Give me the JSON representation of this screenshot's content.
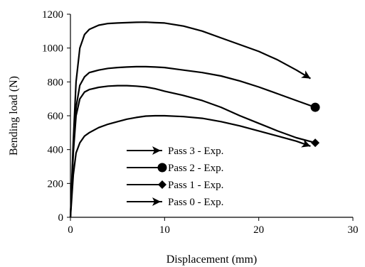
{
  "chart_data": {
    "type": "line",
    "title": "",
    "xlabel": "Displacement (mm)",
    "ylabel": "Bending load (N)",
    "xlim": [
      0,
      30
    ],
    "ylim": [
      0,
      1200
    ],
    "xticks": [
      0,
      10,
      20,
      30
    ],
    "yticks": [
      0,
      200,
      400,
      600,
      800,
      1000,
      1200
    ],
    "grid": false,
    "legend_position": "lower-center",
    "series": [
      {
        "name": "Pass 3 - Exp.",
        "marker": "arrow",
        "x": [
          0,
          0.3,
          0.6,
          1.0,
          1.5,
          2.0,
          3.0,
          4.0,
          5.0,
          6.0,
          7.0,
          8.0,
          9.0,
          10.0,
          12.0,
          14.0,
          16.0,
          18.0,
          20.0,
          22.0,
          24.0,
          25.5
        ],
        "y": [
          0,
          450,
          800,
          1000,
          1080,
          1110,
          1135,
          1145,
          1148,
          1150,
          1152,
          1153,
          1150,
          1148,
          1130,
          1100,
          1060,
          1020,
          980,
          930,
          870,
          820
        ]
      },
      {
        "name": "Pass 2 - Exp.",
        "marker": "circle",
        "x": [
          0,
          0.3,
          0.6,
          1.0,
          1.5,
          2.0,
          3.0,
          4.0,
          5.0,
          6.0,
          7.0,
          8.0,
          9.0,
          10.0,
          12.0,
          14.0,
          16.0,
          18.0,
          20.0,
          22.0,
          24.0,
          26.0
        ],
        "y": [
          0,
          400,
          650,
          780,
          830,
          855,
          870,
          880,
          885,
          888,
          890,
          890,
          888,
          885,
          870,
          855,
          835,
          805,
          770,
          730,
          690,
          650
        ]
      },
      {
        "name": "Pass 1 - Exp.",
        "marker": "diamond",
        "x": [
          0,
          0.3,
          0.6,
          1.0,
          1.5,
          2.0,
          3.0,
          4.0,
          5.0,
          6.0,
          7.0,
          8.0,
          9.0,
          10.0,
          12.0,
          14.0,
          16.0,
          18.0,
          20.0,
          22.0,
          24.0,
          26.0
        ],
        "y": [
          0,
          380,
          600,
          700,
          740,
          755,
          768,
          775,
          778,
          778,
          775,
          770,
          760,
          745,
          720,
          690,
          650,
          600,
          555,
          510,
          470,
          440
        ]
      },
      {
        "name": "Pass 0 - Exp.",
        "marker": "arrow",
        "x": [
          0,
          0.3,
          0.6,
          1.0,
          1.5,
          2.0,
          3.0,
          4.0,
          5.0,
          6.0,
          7.0,
          8.0,
          9.0,
          10.0,
          12.0,
          14.0,
          16.0,
          18.0,
          20.0,
          22.0,
          24.0,
          25.5
        ],
        "y": [
          0,
          250,
          380,
          440,
          480,
          500,
          530,
          550,
          565,
          580,
          590,
          598,
          600,
          600,
          595,
          585,
          565,
          540,
          510,
          480,
          450,
          420
        ]
      }
    ]
  }
}
